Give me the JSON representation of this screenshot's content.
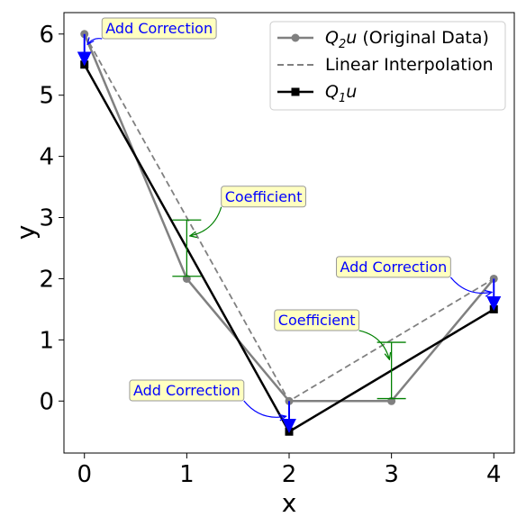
{
  "chart_data": {
    "type": "line",
    "xlabel": "x",
    "ylabel": "y",
    "xlim": [
      -0.2,
      4.2
    ],
    "ylim": [
      -0.85,
      6.35
    ],
    "xticks": [
      "0",
      "1",
      "2",
      "3",
      "4"
    ],
    "yticks": [
      "0",
      "1",
      "2",
      "3",
      "4",
      "5",
      "6"
    ],
    "grid": false,
    "legend_position": "top-right",
    "series": [
      {
        "name": "Q₂u (Original Data)",
        "name_base": "Q",
        "name_sub": "2",
        "name_rest": "u (Original Data)",
        "style": "solid-circle",
        "color": "#808080",
        "x": [
          0,
          1,
          2,
          3,
          4
        ],
        "y": [
          6,
          2,
          0,
          0,
          2
        ]
      },
      {
        "name": "Linear Interpolation",
        "style": "dashed",
        "color": "#808080",
        "x": [
          0,
          2,
          4
        ],
        "y": [
          6,
          0,
          2
        ]
      },
      {
        "name": "Q₁u",
        "name_base": "Q",
        "name_sub": "1",
        "name_rest": "u",
        "style": "solid-square",
        "color": "#000000",
        "x": [
          0,
          2,
          4
        ],
        "y": [
          5.5,
          -0.5,
          1.5
        ]
      }
    ],
    "correction_arrows": [
      {
        "x": 0,
        "from": 6,
        "to": 5.5
      },
      {
        "x": 2,
        "from": 0,
        "to": -0.5
      },
      {
        "x": 4,
        "from": 2,
        "to": 1.5
      }
    ],
    "coefficient_bars": [
      {
        "x": 1,
        "y1": 2.04,
        "y2": 2.96
      },
      {
        "x": 3,
        "y1": 0.04,
        "y2": 0.96
      }
    ],
    "annotations": [
      {
        "text": "Add Correction",
        "kind": "correction",
        "label_x": 0.73,
        "label_y": 6.1,
        "target_x": 0.03,
        "target_y": 5.83,
        "rad": -0.3
      },
      {
        "text": "Coefficient",
        "kind": "coefficient",
        "label_x": 1.75,
        "label_y": 3.35,
        "target_x": 1.03,
        "target_y": 2.7,
        "rad": 0.3
      },
      {
        "text": "Add Correction",
        "kind": "correction",
        "label_x": 3.02,
        "label_y": 2.2,
        "target_x": 3.98,
        "target_y": 1.78,
        "rad": -0.3
      },
      {
        "text": "Coefficient",
        "kind": "coefficient",
        "label_x": 2.27,
        "label_y": 1.33,
        "target_x": 2.98,
        "target_y": 0.68,
        "rad": 0.3
      },
      {
        "text": "Add Correction",
        "kind": "correction",
        "label_x": 1.0,
        "label_y": 0.18,
        "target_x": 1.97,
        "target_y": -0.25,
        "rad": -0.3
      }
    ],
    "colors": {
      "correction": "#0000ff",
      "coefficient": "#008000",
      "annotation_fill": "#ffffc0",
      "annotation_border": "#999999"
    }
  }
}
